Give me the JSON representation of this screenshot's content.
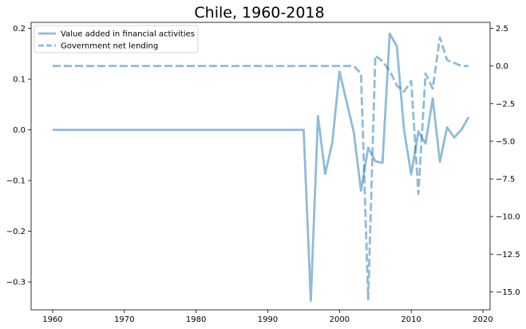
{
  "chart_data": {
    "type": "line",
    "title": "Chile, 1960-2018",
    "xlabel": "",
    "ylabel": "",
    "y2label": "",
    "xlim": [
      1957,
      2021
    ],
    "ylim": [
      -0.355,
      0.212
    ],
    "y2lim": [
      -16.2,
      2.9
    ],
    "xticks": [
      1960,
      1970,
      1980,
      1990,
      2000,
      2010,
      2020
    ],
    "yticks": [
      -0.3,
      -0.2,
      -0.1,
      0.0,
      0.1,
      0.2
    ],
    "ytick_labels": [
      "−0.3",
      "−0.2",
      "−0.1",
      "0.0",
      "0.1",
      "0.2"
    ],
    "y2ticks": [
      -15,
      -12.5,
      -10,
      -7.5,
      -5,
      -2.5,
      0,
      2.5
    ],
    "y2tick_labels": [
      "−15.0",
      "−12.5",
      "−10.0",
      "−7.5",
      "−5.0",
      "−2.5",
      "0.0",
      "2.5"
    ],
    "grid": false,
    "legend_position": "top-left",
    "series": [
      {
        "name": "Value added in financial activities",
        "axis": "left",
        "style": "solid",
        "color": "#1f77b4",
        "x": [
          1960,
          1995,
          1996,
          1997,
          1998,
          1999,
          2000,
          2001,
          2002,
          2003,
          2004,
          2005,
          2006,
          2007,
          2008,
          2009,
          2010,
          2011,
          2012,
          2013,
          2014,
          2015,
          2016,
          2017,
          2018
        ],
        "y": [
          0.0,
          0.0,
          -0.337,
          0.027,
          -0.087,
          -0.025,
          0.115,
          0.055,
          -0.005,
          -0.12,
          -0.035,
          -0.062,
          -0.065,
          0.19,
          0.165,
          0.0,
          -0.088,
          -0.003,
          -0.027,
          0.062,
          -0.063,
          0.005,
          -0.015,
          0.0,
          0.025
        ]
      },
      {
        "name": "Government net lending",
        "axis": "right",
        "style": "dashed",
        "color": "#1f77b4",
        "x": [
          1960,
          2002,
          2003,
          2004,
          2005,
          2006,
          2007,
          2008,
          2009,
          2010,
          2011,
          2012,
          2013,
          2014,
          2015,
          2016,
          2017,
          2018
        ],
        "y": [
          0.0,
          0.0,
          -0.5,
          -15.5,
          0.7,
          0.3,
          -0.3,
          -1.3,
          -1.7,
          -1.0,
          -8.5,
          -0.5,
          -1.5,
          1.9,
          0.4,
          0.2,
          0.0,
          0.0
        ]
      }
    ]
  }
}
